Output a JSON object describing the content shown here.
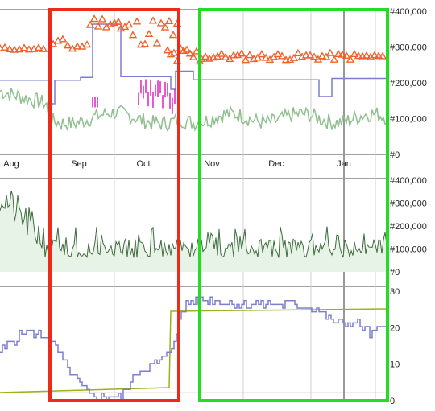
{
  "colors": {
    "price_tri": "#f0602a",
    "step_line": "#7b7fd0",
    "avg_line": "#8fbf8f",
    "magenta": "#e020c0",
    "volume_line": "#3e6b3e",
    "volume_fill": "#e6f3e6",
    "rank_line": "#7b7fd0",
    "trend_line": "#99b31a",
    "box_red": "#ee2a1b",
    "box_green": "#22dd22",
    "cursor": "#999999",
    "grid": "#d0d0d0"
  },
  "chart_data": [
    {
      "type": "line",
      "panel": "price",
      "x_axis": {
        "labels": [
          "Aug",
          "Sep",
          "Oct",
          "Nov",
          "Dec",
          "Jan"
        ]
      },
      "y_axis": {
        "ticks": [
          "#400,000",
          "#300,000",
          "#200,000",
          "#100,000",
          "#0"
        ],
        "range": [
          0,
          400000
        ]
      },
      "series": [
        {
          "kind": "triangle-markers",
          "approx": [
            [
              0,
              290000
            ],
            [
              8,
              292000
            ],
            [
              15,
              286000
            ],
            [
              22,
              292000
            ],
            [
              28,
              295000
            ],
            [
              34,
              300000
            ],
            [
              40,
              360000
            ],
            [
              46,
              370000
            ],
            [
              52,
              285000
            ],
            [
              58,
              300000
            ],
            [
              65,
              295000
            ],
            [
              72,
              272000
            ],
            [
              78,
              268000
            ],
            [
              84,
              265000
            ],
            [
              90,
              262000
            ],
            [
              96,
              268000
            ],
            [
              102,
              272000
            ],
            [
              108,
              275000
            ],
            [
              114,
              270000
            ],
            [
              120,
              268000
            ],
            [
              124,
              265000
            ],
            [
              130,
              265000
            ],
            [
              136,
              262000
            ],
            [
              140,
              258000
            ]
          ]
        },
        {
          "kind": "step",
          "approx": [
            [
              0,
              220000
            ],
            [
              4,
              195000
            ],
            [
              5,
              175000
            ],
            [
              6,
              210000
            ],
            [
              15,
              210000
            ],
            [
              16,
              370000
            ],
            [
              20,
              370000
            ],
            [
              21,
              215000
            ],
            [
              44,
              215000
            ],
            [
              45,
              165000
            ],
            [
              50,
              165000
            ],
            [
              51,
              210000
            ],
            [
              56,
              210000
            ]
          ]
        },
        {
          "kind": "noisy-line",
          "approx": [
            [
              0,
              195000
            ],
            [
              4,
              110000
            ],
            [
              8,
              100000
            ],
            [
              12,
              95000
            ],
            [
              16,
              85000
            ],
            [
              20,
              105000
            ],
            [
              24,
              90000
            ],
            [
              28,
              110000
            ],
            [
              32,
              75000
            ],
            [
              36,
              80000
            ],
            [
              40,
              95000
            ],
            [
              44,
              105000
            ],
            [
              48,
              88000
            ],
            [
              52,
              100000
            ],
            [
              56,
              92000
            ]
          ]
        }
      ]
    },
    {
      "type": "area",
      "panel": "volume",
      "y_axis": {
        "ticks": [
          "#400,000",
          "#300,000",
          "#200,000",
          "#100,000",
          "#0"
        ],
        "range": [
          0,
          400000
        ]
      },
      "series": [
        {
          "kind": "noisy-line",
          "approx": [
            [
              0,
              370000
            ],
            [
              2,
              280000
            ],
            [
              4,
              230000
            ],
            [
              6,
              180000
            ],
            [
              8,
              110000
            ],
            [
              12,
              130000
            ],
            [
              16,
              110000
            ],
            [
              20,
              120000
            ],
            [
              24,
              105000
            ],
            [
              28,
              110000
            ],
            [
              32,
              100000
            ],
            [
              36,
              110000
            ],
            [
              40,
              105000
            ],
            [
              44,
              100000
            ],
            [
              48,
              95000
            ],
            [
              52,
              105000
            ],
            [
              56,
              110000
            ]
          ]
        }
      ]
    },
    {
      "type": "line",
      "panel": "rank",
      "y_axis": {
        "ticks": [
          "30",
          "20",
          "10",
          "0"
        ],
        "range": [
          0,
          30
        ]
      },
      "series": [
        {
          "kind": "step",
          "approx": [
            [
              0,
              14
            ],
            [
              5,
              19
            ],
            [
              10,
              18
            ],
            [
              15,
              14
            ],
            [
              20,
              10
            ],
            [
              25,
              5
            ],
            [
              28,
              2
            ],
            [
              32,
              1
            ],
            [
              36,
              2
            ],
            [
              40,
              6
            ],
            [
              44,
              9
            ],
            [
              48,
              12
            ],
            [
              52,
              16
            ],
            [
              54,
              23
            ],
            [
              56,
              27
            ],
            [
              62,
              27
            ],
            [
              70,
              26
            ],
            [
              80,
              26
            ],
            [
              90,
              26
            ],
            [
              100,
              25
            ],
            [
              104,
              22
            ],
            [
              108,
              21
            ],
            [
              112,
              18
            ],
            [
              116,
              20
            ]
          ]
        },
        {
          "kind": "trend",
          "approx": [
            [
              0,
              2
            ],
            [
              52,
              3
            ],
            [
              53,
              24
            ],
            [
              116,
              25
            ]
          ]
        }
      ]
    }
  ]
}
